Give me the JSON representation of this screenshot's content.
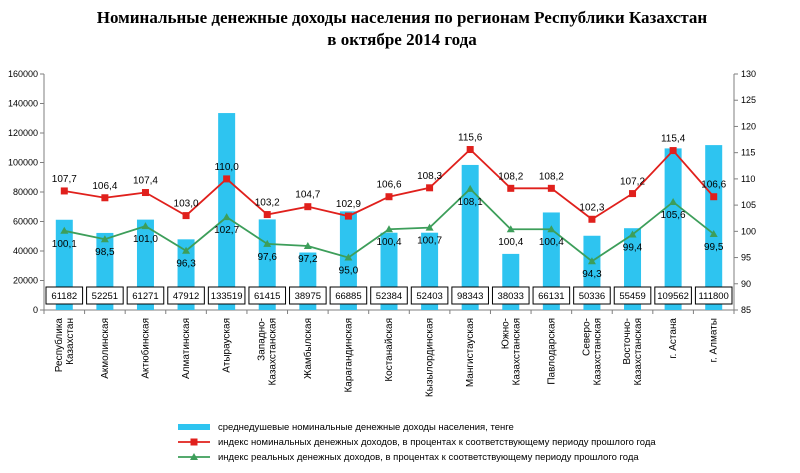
{
  "chart_data": {
    "type": "bar",
    "title_line1": "Номинальные денежные доходы населения по регионам Республики Казахстан",
    "title_line2": "в октябре 2014 года",
    "categories": [
      [
        "Республика",
        "Казахстан"
      ],
      [
        "Акмолинская"
      ],
      [
        "Актюбинская"
      ],
      [
        "Алматинская"
      ],
      [
        "Атырауская"
      ],
      [
        "Западно-",
        "Казахстанская"
      ],
      [
        "Жамбылская"
      ],
      [
        "Карагандинская"
      ],
      [
        "Костанайская"
      ],
      [
        "Кызылординская"
      ],
      [
        "Мангистауская"
      ],
      [
        "Южно-",
        "Казахстанская"
      ],
      [
        "Павлодарская"
      ],
      [
        "Северо-",
        "Казахстанская"
      ],
      [
        "Восточно-",
        "Казахстанская"
      ],
      [
        "г. Астана"
      ],
      [
        "г. Алматы"
      ]
    ],
    "series": [
      {
        "name": "среднедушевые номинальные денежные доходы населения, тенге",
        "kind": "bar",
        "axis": "left",
        "color": "#2ec4f0",
        "values": [
          61182,
          52251,
          61271,
          47912,
          133519,
          61415,
          38975,
          66885,
          52384,
          52403,
          98343,
          38033,
          66131,
          50336,
          55459,
          109562,
          111800
        ],
        "labels": [
          "61182",
          "52251",
          "61271",
          "47912",
          "133519",
          "61415",
          "38975",
          "66885",
          "52384",
          "52403",
          "98343",
          "38033",
          "66131",
          "50336",
          "55459",
          "109562",
          "111800"
        ]
      },
      {
        "name": "индекс номинальных денежных доходов, в процентах к соответствующему периоду прошлого года",
        "kind": "line",
        "axis": "right",
        "color": "#e0201c",
        "values": [
          107.7,
          106.4,
          107.4,
          103.0,
          110.0,
          103.2,
          104.7,
          102.9,
          106.6,
          108.3,
          115.6,
          108.2,
          108.2,
          102.3,
          107.2,
          115.4,
          106.6
        ],
        "labels": [
          "107,7",
          "106,4",
          "107,4",
          "103,0",
          "110,0",
          "103,2",
          "104,7",
          "102,9",
          "106,6",
          "108,3",
          "115,6",
          "108,2",
          "108,2",
          "102,3",
          "107,2",
          "115,4",
          "106,6"
        ]
      },
      {
        "name": "индекс реальных денежных доходов, в процентах к соответствующему периоду прошлого года",
        "kind": "line",
        "axis": "right",
        "color": "#3d9e5a",
        "values": [
          100.1,
          98.5,
          101.0,
          96.3,
          102.7,
          97.6,
          97.2,
          95.0,
          100.4,
          100.7,
          108.1,
          100.4,
          100.4,
          94.3,
          99.4,
          105.6,
          99.5
        ],
        "labels": [
          "100,1",
          "98,5",
          "101,0",
          "96,3",
          "102,7",
          "97,6",
          "97,2",
          "95,0",
          "100,4",
          "100,7",
          "108,1",
          "100,4",
          "100,4",
          "94,3",
          "99,4",
          "105,6",
          "99,5"
        ]
      }
    ],
    "y_left": {
      "min": 0,
      "max": 160000,
      "ticks": [
        "0",
        "20000",
        "40000",
        "60000",
        "80000",
        "100000",
        "120000",
        "140000",
        "160000"
      ]
    },
    "y_right": {
      "min": 85,
      "max": 130,
      "ticks": [
        "85",
        "90",
        "95",
        "100",
        "105",
        "110",
        "115",
        "120",
        "125",
        "130"
      ]
    },
    "grid": false,
    "legend_position": "bottom"
  }
}
